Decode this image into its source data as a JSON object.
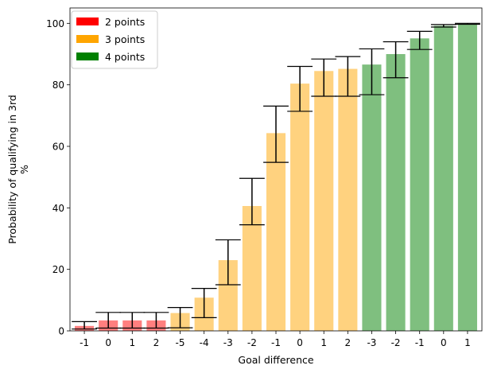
{
  "chart_data": {
    "type": "bar",
    "xlabel": "Goal difference",
    "ylabel_lines": [
      "Probability of qualifying in 3rd",
      "%"
    ],
    "ylim": [
      0,
      105
    ],
    "yticks": [
      0,
      20,
      40,
      60,
      80,
      100
    ],
    "legend_position": "top-left",
    "grid": false,
    "series": [
      {
        "name": "2 points",
        "color": "#ff0000",
        "bar_alpha": 0.5,
        "categories": [
          "-1",
          "0",
          "1",
          "2"
        ],
        "values": [
          1.6,
          3.4,
          3.4,
          3.4
        ],
        "err_low": [
          0.6,
          0.9,
          0.9,
          0.9
        ],
        "err_high": [
          3.0,
          6.0,
          6.0,
          6.0
        ]
      },
      {
        "name": "3 points",
        "color": "#ffa500",
        "bar_alpha": 0.5,
        "categories": [
          "-5",
          "-4",
          "-3",
          "-2",
          "-1",
          "0",
          "1",
          "2"
        ],
        "values": [
          5.8,
          10.8,
          23.0,
          40.6,
          64.3,
          80.4,
          84.5,
          85.2
        ],
        "err_low": [
          1.0,
          4.3,
          15.0,
          34.5,
          54.8,
          71.4,
          76.3,
          76.3
        ],
        "err_high": [
          7.6,
          13.8,
          29.6,
          49.6,
          73.1,
          86.0,
          88.4,
          89.2
        ]
      },
      {
        "name": "4 points",
        "color": "#008000",
        "bar_alpha": 0.5,
        "categories": [
          "-3",
          "-2",
          "-1",
          "0",
          "1"
        ],
        "values": [
          86.6,
          90.0,
          95.1,
          99.2,
          99.9
        ],
        "err_low": [
          76.8,
          82.3,
          91.5,
          98.8,
          99.7
        ],
        "err_high": [
          91.7,
          94.0,
          97.4,
          99.6,
          100.0
        ]
      }
    ]
  }
}
